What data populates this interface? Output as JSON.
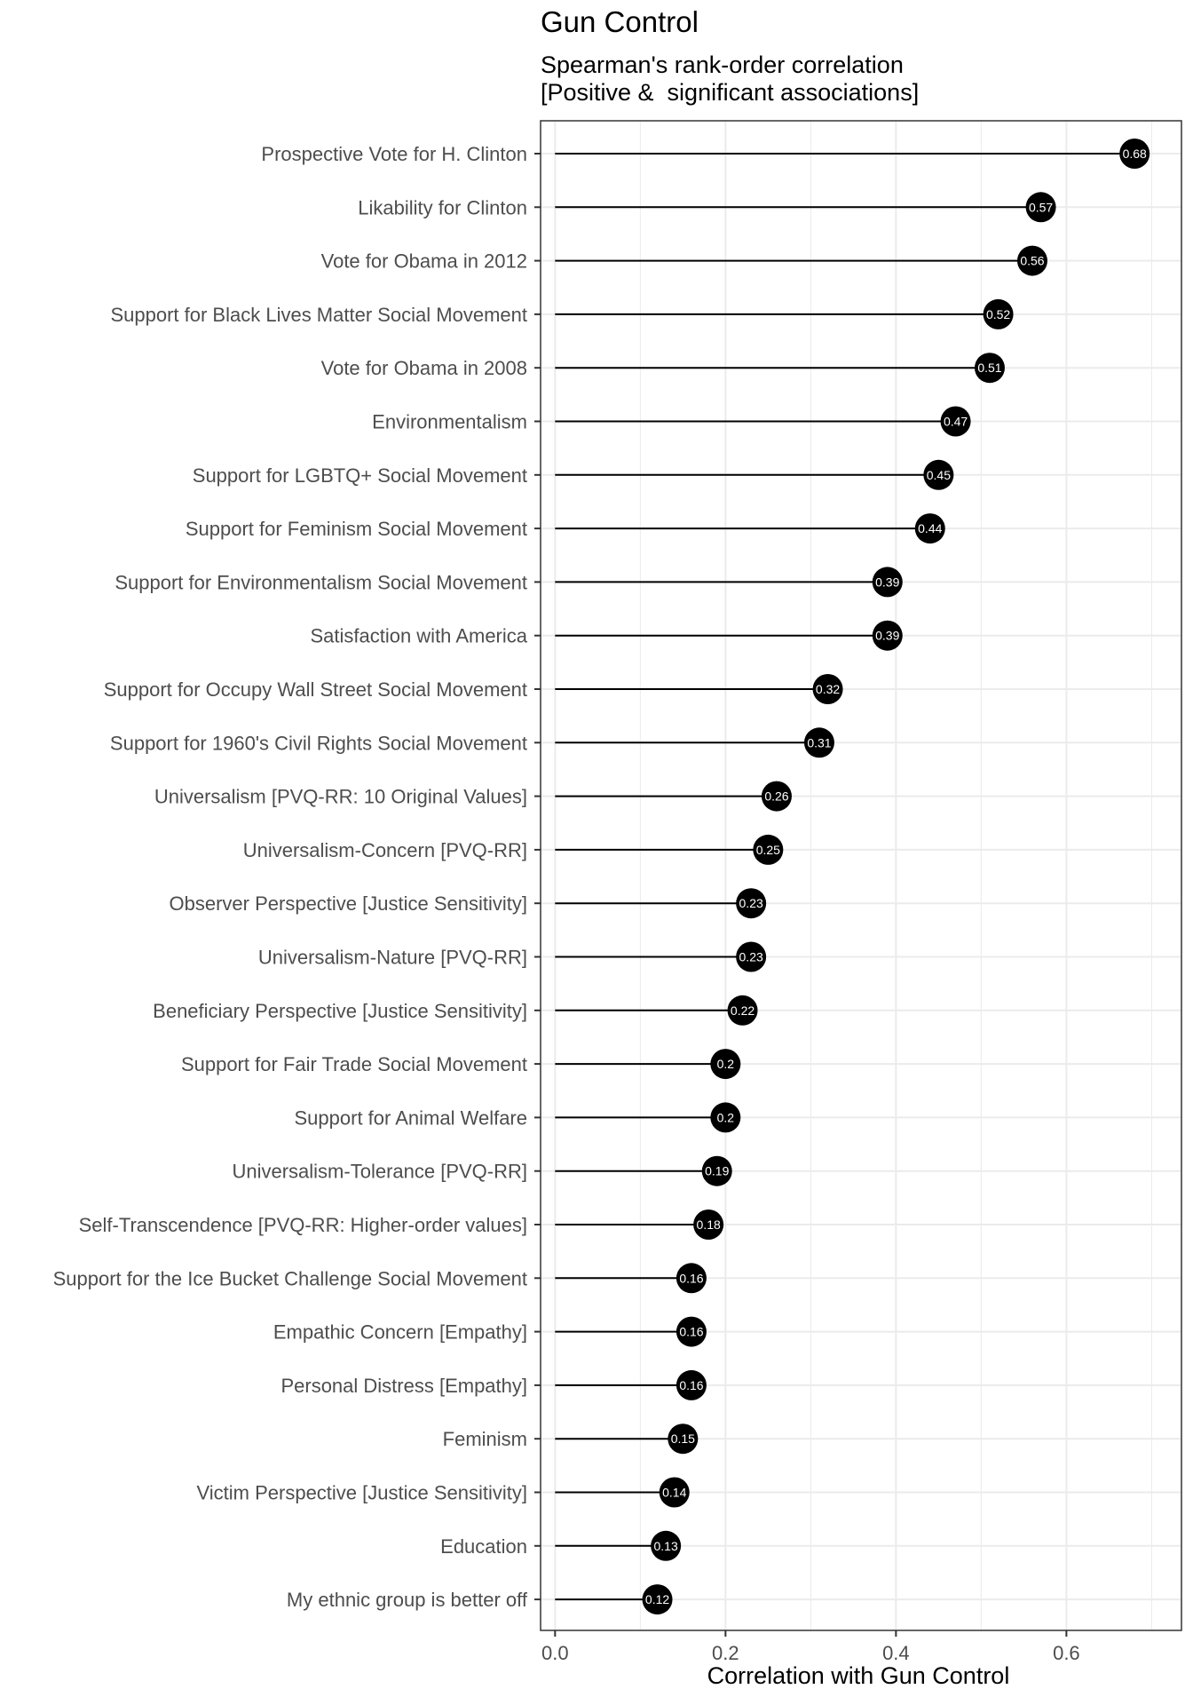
{
  "chart_data": {
    "type": "lollipop",
    "title": "Gun Control",
    "subtitle_lines": [
      "Spearman's rank-order correlation",
      "[Positive &  significant associations]"
    ],
    "xlabel": "Correlation with Gun Control",
    "ylabel": "",
    "xlim": [
      -0.017,
      0.735
    ],
    "x_ticks": [
      0.0,
      0.2,
      0.4,
      0.6
    ],
    "x_tick_labels": [
      "0.0",
      "0.2",
      "0.4",
      "0.6"
    ],
    "grid": true,
    "colors": {
      "marker": "#000000",
      "stem": "#000000",
      "value_label": "#ffffff",
      "grid": "#ebebeb",
      "panel_border": "#333333",
      "text": "#4d4d4d"
    },
    "categories": [
      "Prospective Vote for H. Clinton",
      "Likability for Clinton",
      "Vote for Obama in 2012",
      "Support for Black Lives Matter Social Movement",
      "Vote for Obama in 2008",
      "Environmentalism",
      "Support for LGBTQ+ Social Movement",
      "Support for Feminism Social Movement",
      "Support for Environmentalism Social Movement",
      "Satisfaction with America",
      "Support for Occupy Wall Street Social Movement",
      "Support for 1960's Civil Rights Social Movement",
      "Universalism [PVQ-RR: 10 Original Values]",
      "Universalism-Concern [PVQ-RR]",
      "Observer Perspective [Justice Sensitivity]",
      "Universalism-Nature [PVQ-RR]",
      "Beneficiary Perspective [Justice Sensitivity]",
      "Support for Fair Trade Social Movement",
      "Support for Animal Welfare",
      "Universalism-Tolerance [PVQ-RR]",
      "Self-Transcendence [PVQ-RR: Higher-order values]",
      "Support for the Ice Bucket Challenge Social Movement",
      "Empathic Concern [Empathy]",
      "Personal Distress [Empathy]",
      "Feminism",
      "Victim Perspective [Justice Sensitivity]",
      "Education",
      "My ethnic group is better off"
    ],
    "values": [
      0.68,
      0.57,
      0.56,
      0.52,
      0.51,
      0.47,
      0.45,
      0.44,
      0.39,
      0.39,
      0.32,
      0.31,
      0.26,
      0.25,
      0.23,
      0.23,
      0.22,
      0.2,
      0.2,
      0.19,
      0.18,
      0.16,
      0.16,
      0.16,
      0.15,
      0.14,
      0.13,
      0.12
    ],
    "value_labels": [
      "0.68",
      "0.57",
      "0.56",
      "0.52",
      "0.51",
      "0.47",
      "0.45",
      "0.44",
      "0.39",
      "0.39",
      "0.32",
      "0.31",
      "0.26",
      "0.25",
      "0.23",
      "0.23",
      "0.22",
      "0.2",
      "0.2",
      "0.19",
      "0.18",
      "0.16",
      "0.16",
      "0.16",
      "0.15",
      "0.14",
      "0.13",
      "0.12"
    ]
  }
}
